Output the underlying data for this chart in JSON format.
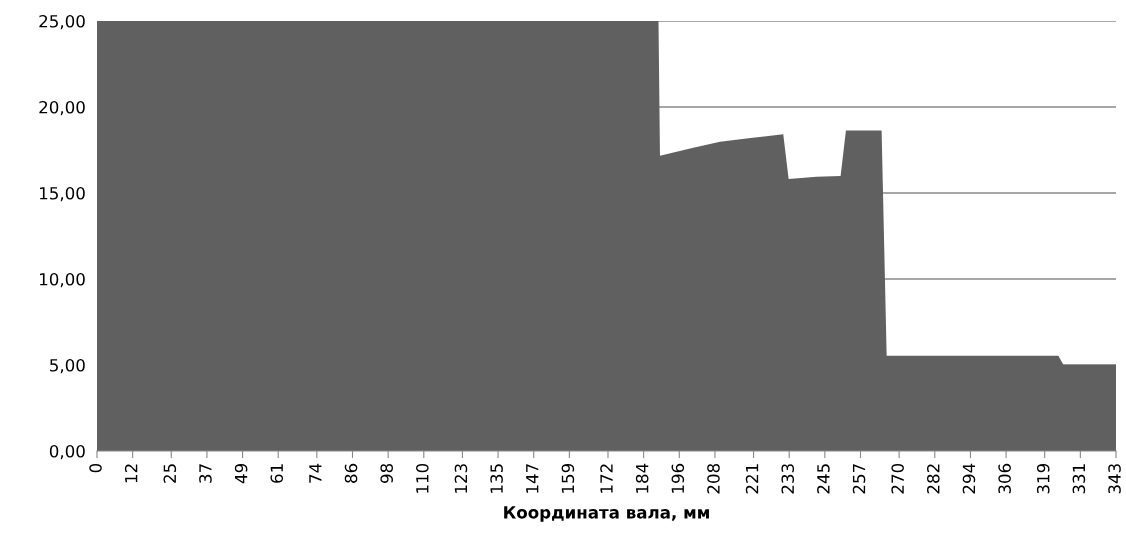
{
  "chart_data": {
    "type": "area",
    "xlabel": "Координата вала, мм",
    "x": [
      0,
      189,
      189.5,
      200,
      209.7,
      220,
      231,
      232.8,
      242.2,
      250.3,
      252.1,
      264.1,
      265.8,
      323.6,
      325.3,
      343
    ],
    "series": [
      {
        "color": "#606060",
        "values": [
          25,
          25,
          17.17,
          17.6,
          17.98,
          18.2,
          18.41,
          15.81,
          15.95,
          15.99,
          18.64,
          18.64,
          5.54,
          5.54,
          5.02,
          5.02
        ]
      }
    ],
    "xlim": [
      0,
      343
    ],
    "xticks": [
      0,
      12,
      25,
      37,
      49,
      61,
      74,
      86,
      98,
      110,
      123,
      135,
      147,
      159,
      172,
      184,
      196,
      208,
      221,
      233,
      245,
      257,
      270,
      282,
      294,
      306,
      319,
      331,
      343
    ],
    "ylim": [
      0,
      25
    ],
    "yticks": [
      {
        "value": 0,
        "label": "0,00"
      },
      {
        "value": 5,
        "label": "5,00"
      },
      {
        "value": 10,
        "label": "10,00"
      },
      {
        "value": 15,
        "label": "15,00"
      },
      {
        "value": 20,
        "label": "20,00"
      },
      {
        "value": 25,
        "label": "25,00"
      }
    ],
    "grid": "y"
  }
}
